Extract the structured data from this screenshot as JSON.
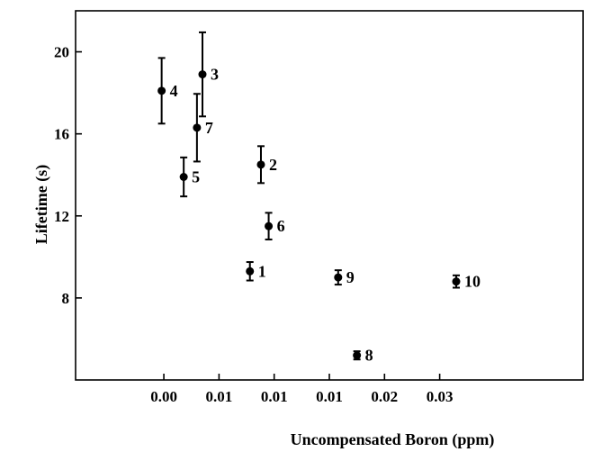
{
  "chart_data": {
    "type": "scatter",
    "title": "",
    "xlabel": "Uncompensated Boron (ppm)",
    "ylabel": "Lifetime (s)",
    "xlim": [
      -0.008,
      0.038
    ],
    "ylim": [
      4,
      22
    ],
    "x_ticks": [
      {
        "value": 0.0,
        "label": "0.00"
      },
      {
        "value": 0.005,
        "label": "0.01"
      },
      {
        "value": 0.01,
        "label": "0.01"
      },
      {
        "value": 0.015,
        "label": "0.01"
      },
      {
        "value": 0.02,
        "label": "0.02"
      },
      {
        "value": 0.025,
        "label": "0.03"
      }
    ],
    "y_ticks": [
      {
        "value": 8,
        "label": "8"
      },
      {
        "value": 12,
        "label": "12"
      },
      {
        "value": 16,
        "label": "16"
      },
      {
        "value": 20,
        "label": "20"
      }
    ],
    "series": [
      {
        "error_bars": true,
        "points": [
          {
            "label": "1",
            "x": 0.0078,
            "y": 9.3,
            "err": 0.45
          },
          {
            "label": "2",
            "x": 0.0088,
            "y": 14.5,
            "err": 0.9
          },
          {
            "label": "3",
            "x": 0.0035,
            "y": 18.9,
            "err": 2.05
          },
          {
            "label": "4",
            "x": -0.0002,
            "y": 18.1,
            "err": 1.6
          },
          {
            "label": "5",
            "x": 0.0018,
            "y": 13.9,
            "err": 0.95
          },
          {
            "label": "6",
            "x": 0.0095,
            "y": 11.5,
            "err": 0.65
          },
          {
            "label": "7",
            "x": 0.003,
            "y": 16.3,
            "err": 1.65
          },
          {
            "label": "8",
            "x": 0.0175,
            "y": 5.2,
            "err": 0.2
          },
          {
            "label": "9",
            "x": 0.0158,
            "y": 9.0,
            "err": 0.35
          },
          {
            "label": "10",
            "x": 0.0265,
            "y": 8.8,
            "err": 0.3
          }
        ]
      }
    ]
  }
}
